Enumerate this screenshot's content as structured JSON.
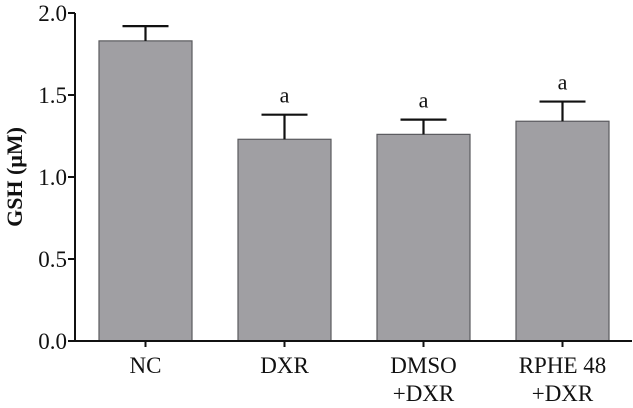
{
  "chart_data": {
    "type": "bar",
    "title": "",
    "xlabel": "",
    "ylabel": "GSH (μM)",
    "ylim": [
      0,
      2.0
    ],
    "yticks": [
      0.0,
      0.5,
      1.0,
      1.5,
      2.0
    ],
    "ytick_labels": [
      "0.0",
      "0.5",
      "1.0",
      "1.5",
      "2.0"
    ],
    "categories": [
      "NC",
      "DXR",
      "DMSO +DXR",
      "RPHE 48 +DXR"
    ],
    "category_lines": [
      [
        "NC"
      ],
      [
        "DXR"
      ],
      [
        "DMSO",
        "+DXR"
      ],
      [
        "RPHE 48",
        "+DXR"
      ]
    ],
    "values": [
      1.83,
      1.23,
      1.26,
      1.34
    ],
    "errors": [
      0.09,
      0.15,
      0.09,
      0.12
    ],
    "annotations": [
      "",
      "a",
      "a",
      "a"
    ],
    "grid": false,
    "legend": null,
    "bar_color": "#a09fa3",
    "bar_edge_color": "#5a5a5e"
  }
}
